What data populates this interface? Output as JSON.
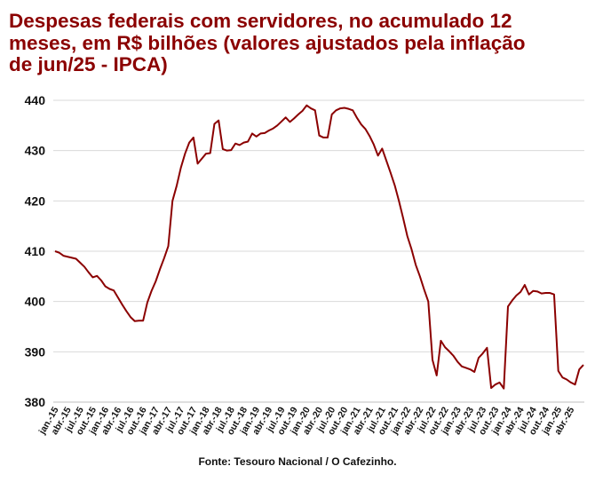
{
  "title_lines": [
    "Despesas federais com servidores, no acumulado 12",
    "meses, em R$ bilhões (valores ajustados pela inflação",
    "de jun/25 - IPCA)"
  ],
  "source": "Fonte: Tesouro Nacional / O Cafezinho.",
  "colors": {
    "title": "#8b0000",
    "line": "#8b0000",
    "grid": "#d9d9d9",
    "axis_text": "#111111"
  },
  "chart_data": {
    "type": "line",
    "title": "Despesas federais com servidores, no acumulado 12 meses, em R$ bilhões (valores ajustados pela inflação de jun/25 - IPCA)",
    "xlabel": "",
    "ylabel": "",
    "ylim": [
      380,
      440
    ],
    "yticks": [
      380,
      390,
      400,
      410,
      420,
      430,
      440
    ],
    "grid": "horizontal",
    "legend": "none",
    "xtick_labels": [
      "jan.-15",
      "abr.-15",
      "jul.-15",
      "out.-15",
      "jan.-16",
      "abr.-16",
      "jul.-16",
      "out.-16",
      "jan.-17",
      "abr.-17",
      "jul.-17",
      "out.-17",
      "jan.-18",
      "abr.-18",
      "jul.-18",
      "out.-18",
      "jan.-19",
      "abr.-19",
      "jul.-19",
      "out.-19",
      "jan.-20",
      "abr.-20",
      "jul.-20",
      "out.-20",
      "jan.-21",
      "abr.-21",
      "jul.-21",
      "out.-21",
      "jan.-22",
      "abr.-22",
      "jul.-22",
      "out.-22",
      "jan.-23",
      "abr.-23",
      "jul.-23",
      "out.-23",
      "jan.-24",
      "abr.-24",
      "jul.-24",
      "out.-24",
      "jan.-25",
      "abr.-25"
    ],
    "start": "jan.-15",
    "end": "jun.-25",
    "values": [
      410.0,
      409.7,
      409.1,
      408.9,
      408.7,
      408.5,
      407.7,
      406.9,
      405.8,
      404.8,
      405.1,
      404.2,
      403.0,
      402.5,
      402.2,
      400.8,
      399.4,
      398.1,
      396.9,
      396.1,
      396.2,
      396.2,
      399.8,
      402.1,
      404.0,
      406.4,
      408.6,
      411.0,
      420.0,
      423.0,
      426.6,
      429.4,
      431.6,
      432.6,
      427.4,
      428.4,
      429.4,
      429.5,
      435.3,
      436.0,
      430.3,
      430.0,
      430.1,
      431.4,
      431.1,
      431.6,
      431.8,
      433.4,
      432.8,
      433.4,
      433.5,
      434.0,
      434.4,
      435.0,
      435.8,
      436.6,
      435.7,
      436.4,
      437.2,
      437.9,
      439.0,
      438.4,
      438.0,
      433.0,
      432.6,
      432.6,
      437.2,
      438.0,
      438.4,
      438.5,
      438.3,
      438.0,
      436.5,
      435.2,
      434.3,
      432.9,
      431.2,
      429.0,
      430.4,
      428.0,
      425.6,
      423.1,
      420.0,
      416.6,
      413.0,
      410.4,
      407.3,
      405.0,
      402.4,
      400.0,
      388.4,
      385.3,
      392.2,
      390.9,
      390.1,
      389.2,
      388.0,
      387.1,
      386.8,
      386.5,
      386.0,
      388.8,
      389.7,
      390.8,
      382.8,
      383.5,
      383.9,
      382.7,
      399.0,
      400.2,
      401.2,
      401.9,
      403.3,
      401.4,
      402.1,
      402.0,
      401.6,
      401.7,
      401.7,
      401.4,
      386.2,
      384.9,
      384.5,
      383.9,
      383.5,
      386.5,
      387.4
    ]
  }
}
